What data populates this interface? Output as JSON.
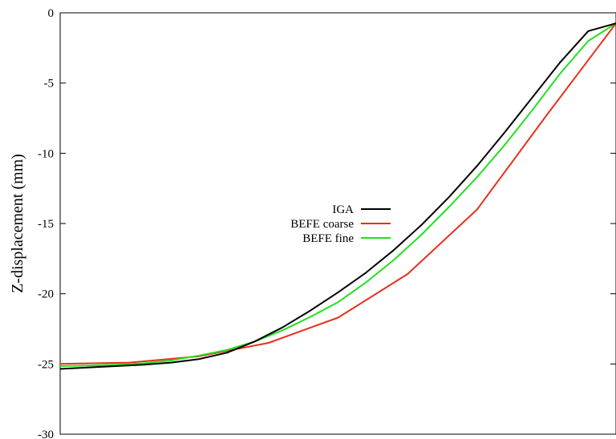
{
  "chart_data": {
    "type": "line",
    "title": "",
    "xlabel": "",
    "ylabel": "Z-displacement (mm)",
    "xlim": [
      0,
      1
    ],
    "ylim": [
      -30,
      0
    ],
    "yticks": [
      0,
      -5,
      -10,
      -15,
      -20,
      -25,
      -30
    ],
    "ytick_labels": [
      "0",
      "-5",
      "-10",
      "-15",
      "-20",
      "-25",
      "-30"
    ],
    "grid": false,
    "legend_position": "center",
    "series": [
      {
        "name": "IGA",
        "color": "#000000",
        "x": [
          0,
          0.05,
          0.1,
          0.15,
          0.2,
          0.25,
          0.3,
          0.35,
          0.4,
          0.45,
          0.5,
          0.55,
          0.6,
          0.65,
          0.7,
          0.75,
          0.8,
          0.85,
          0.9,
          0.95,
          1.0
        ],
        "y": [
          -25.35,
          -25.25,
          -25.15,
          -25.05,
          -24.9,
          -24.65,
          -24.2,
          -23.4,
          -22.4,
          -21.2,
          -19.9,
          -18.5,
          -16.9,
          -15.1,
          -13.1,
          -10.9,
          -8.5,
          -6.0,
          -3.5,
          -1.3,
          -0.75
        ]
      },
      {
        "name": "BEFE coarse",
        "color": "#e8301a",
        "x": [
          0,
          0.125,
          0.25,
          0.375,
          0.5,
          0.625,
          0.75,
          0.875,
          1.0
        ],
        "y": [
          -25.0,
          -24.9,
          -24.45,
          -23.5,
          -21.7,
          -18.6,
          -14.0,
          -7.3,
          -0.75
        ]
      },
      {
        "name": "BEFE fine",
        "color": "#22e022",
        "x": [
          0,
          0.05,
          0.1,
          0.15,
          0.2,
          0.25,
          0.3,
          0.35,
          0.4,
          0.45,
          0.5,
          0.55,
          0.6,
          0.65,
          0.7,
          0.75,
          0.8,
          0.85,
          0.9,
          0.95,
          1.0
        ],
        "y": [
          -25.15,
          -25.12,
          -25.05,
          -24.95,
          -24.75,
          -24.4,
          -24.0,
          -23.4,
          -22.6,
          -21.65,
          -20.6,
          -19.2,
          -17.6,
          -15.8,
          -13.8,
          -11.7,
          -9.4,
          -6.9,
          -4.3,
          -2.0,
          -0.75
        ]
      }
    ]
  }
}
